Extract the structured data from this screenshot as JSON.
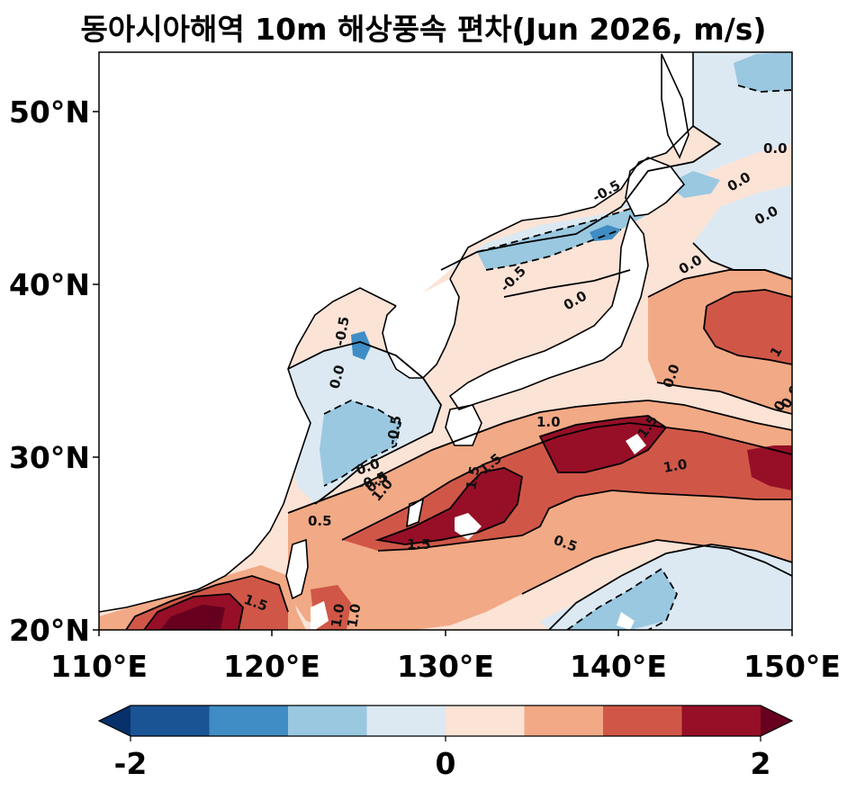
{
  "title": "동아시아해역 10m 해상풍속 편차(Jun 2026, m/s)",
  "map": {
    "lon_ticks": [
      "110°E",
      "120°E",
      "130°E",
      "140°E",
      "150°E"
    ],
    "lat_ticks": [
      "20°N",
      "30°N",
      "40°N",
      "50°N"
    ],
    "extent": {
      "lon_min": 110,
      "lon_max": 150,
      "lat_min": 20,
      "lat_max": 53.3
    }
  },
  "contour_labels": [
    "0.0",
    "0.0",
    "0.0",
    "0.0",
    "0.0",
    "0.0",
    "0.0",
    "0.0",
    "0.0",
    "-0.5",
    "-0.5",
    "-0.5",
    "-0.5",
    "-0.5",
    "0.5",
    "0.5",
    "0.5",
    "1.0",
    "1.0",
    "1.0",
    "1.0",
    "1.0",
    "1.5",
    "1.5",
    "1.5",
    "1.5",
    "1.5",
    "1",
    "0"
  ],
  "colorbar": {
    "min_label": "-2",
    "mid_label": "0",
    "max_label": "2",
    "colors": [
      "#08306b",
      "#1a5494",
      "#3f8dc4",
      "#99c8e0",
      "#dce9f3",
      "#fbe3d6",
      "#f2a985",
      "#d05747",
      "#960f27",
      "#67001f"
    ]
  }
}
